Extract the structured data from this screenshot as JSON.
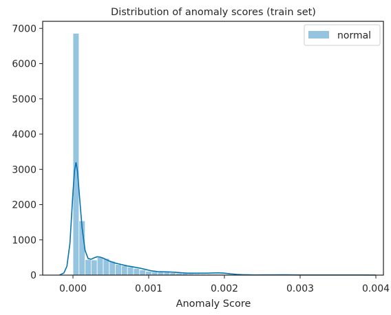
{
  "chart_data": {
    "type": "bar",
    "title": "Distribution of anomaly scores (train set)",
    "xlabel": "Anomaly Score",
    "ylabel": "",
    "xlim": [
      -0.0004,
      0.0041
    ],
    "ylim": [
      0,
      7200
    ],
    "xticks": [
      0.0,
      0.001,
      0.002,
      0.003,
      0.004
    ],
    "xtick_labels": [
      "0.000",
      "0.001",
      "0.002",
      "0.003",
      "0.004"
    ],
    "yticks": [
      0,
      1000,
      2000,
      3000,
      4000,
      5000,
      6000,
      7000
    ],
    "ytick_labels": [
      "0",
      "1000",
      "2000",
      "3000",
      "4000",
      "5000",
      "6000",
      "7000"
    ],
    "grid": false,
    "legend_position": "top-right",
    "colors": {
      "bar": "#94c4df",
      "kde": "#0571b0",
      "axes": "#262626"
    },
    "series": [
      {
        "name": "normal",
        "bin_width": 8e-05,
        "bin_starts": [
          0.0,
          8e-05,
          0.00016,
          0.00024,
          0.00032,
          0.0004,
          0.00048,
          0.00056,
          0.00064,
          0.00072,
          0.0008,
          0.00088,
          0.00096,
          0.00104,
          0.00112,
          0.0012,
          0.00128,
          0.00136,
          0.00144,
          0.00152,
          0.0016,
          0.00168,
          0.00176,
          0.00184,
          0.00192,
          0.002,
          0.00208,
          0.00216,
          0.00224,
          0.00232,
          0.0024,
          0.00248,
          0.00256,
          0.00264,
          0.00272,
          0.0028,
          0.00288,
          0.00296,
          0.00304,
          0.00312,
          0.0032,
          0.00328,
          0.00336,
          0.00344,
          0.00352,
          0.0036,
          0.00368,
          0.00376,
          0.00384,
          0.00392
        ],
        "counts": [
          6860,
          1540,
          440,
          430,
          500,
          470,
          390,
          300,
          270,
          230,
          190,
          150,
          110,
          100,
          95,
          85,
          70,
          55,
          50,
          40,
          35,
          30,
          28,
          25,
          25,
          20,
          12,
          10,
          8,
          8,
          6,
          5,
          6,
          8,
          8,
          6,
          4,
          3,
          3,
          4,
          3,
          2,
          2,
          2,
          2,
          2,
          2,
          4,
          4,
          2
        ]
      }
    ],
    "kde": {
      "x": [
        -0.00018,
        -0.00012,
        -8e-05,
        -4e-05,
        0.0,
        2e-05,
        4e-05,
        6e-05,
        8e-05,
        0.00012,
        0.00016,
        0.0002,
        0.00024,
        0.00028,
        0.00032,
        0.00036,
        0.0004,
        0.00044,
        0.00048,
        0.00056,
        0.00064,
        0.00072,
        0.0008,
        0.00088,
        0.00096,
        0.00104,
        0.00112,
        0.0012,
        0.00128,
        0.00136,
        0.00144,
        0.00152,
        0.0016,
        0.00168,
        0.00176,
        0.00184,
        0.00192,
        0.002,
        0.00208,
        0.00216,
        0.00224,
        0.00232,
        0.0024,
        0.0026,
        0.0028,
        0.003,
        0.0032,
        0.0034,
        0.0036,
        0.0038,
        0.004
      ],
      "y": [
        0,
        60,
        250,
        900,
        2350,
        2950,
        3200,
        2950,
        2400,
        1350,
        700,
        470,
        450,
        490,
        520,
        510,
        480,
        440,
        400,
        340,
        300,
        260,
        230,
        200,
        160,
        120,
        100,
        95,
        90,
        80,
        65,
        55,
        55,
        55,
        55,
        60,
        65,
        55,
        35,
        20,
        12,
        8,
        5,
        6,
        8,
        4,
        3,
        3,
        3,
        4,
        2
      ]
    }
  }
}
